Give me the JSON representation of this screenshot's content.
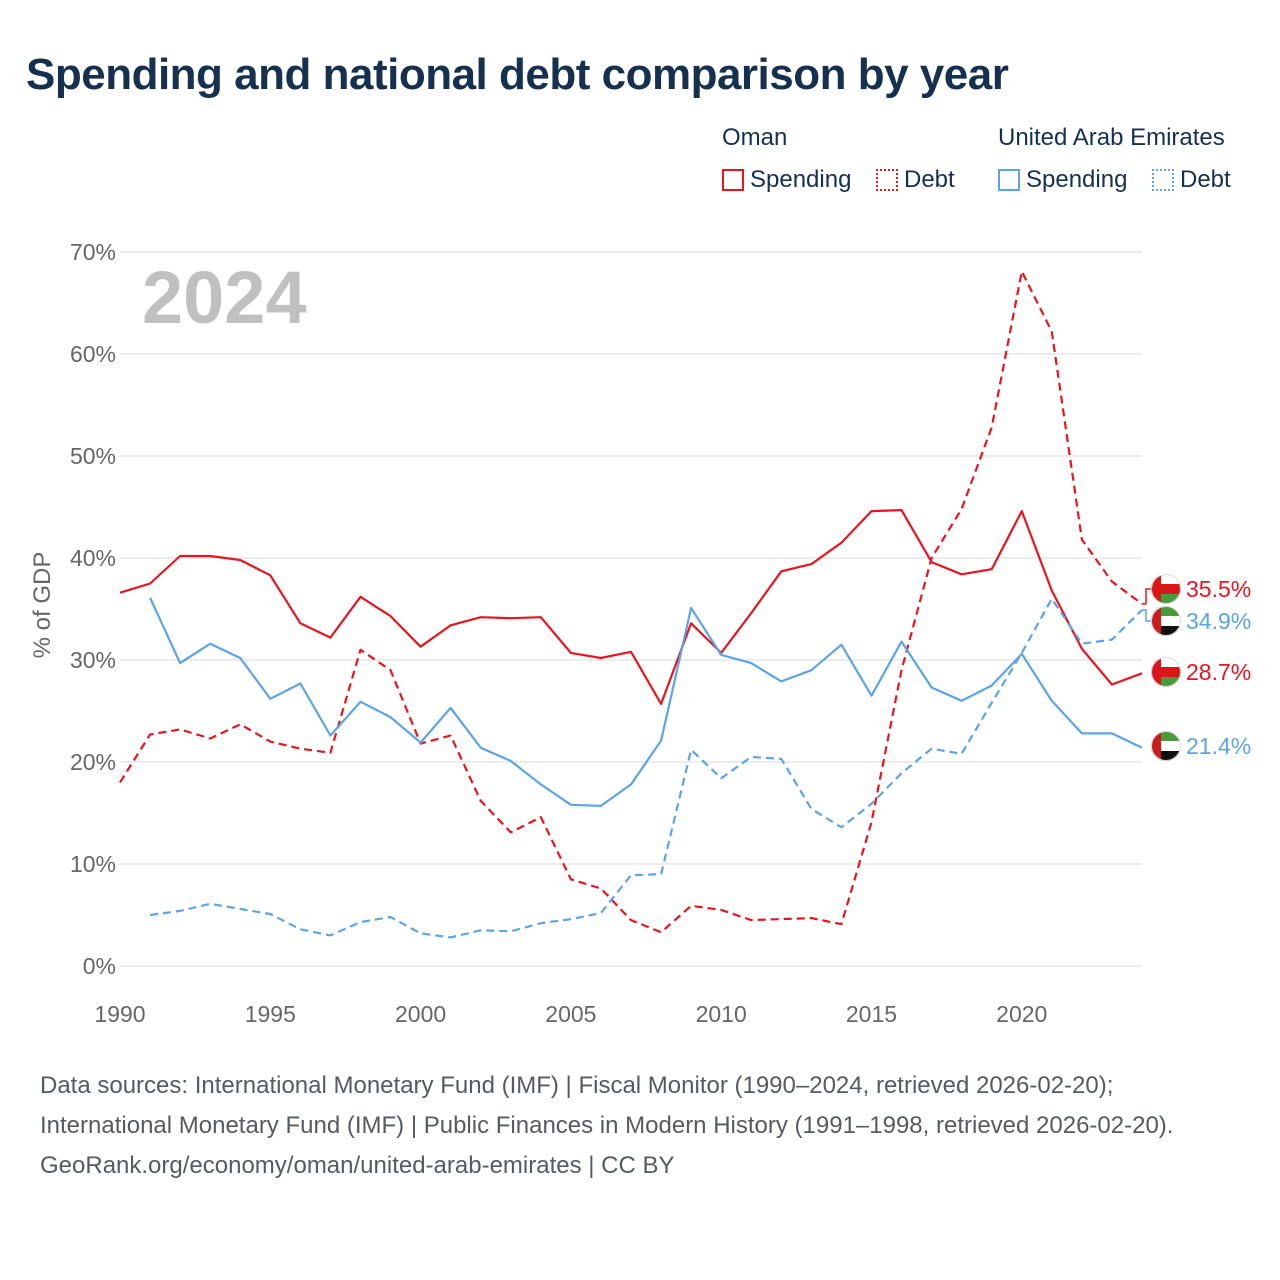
{
  "title": "Spending and national debt comparison by year",
  "legend": {
    "groups": [
      {
        "country": "Oman",
        "spending_label": "Spending",
        "debt_label": "Debt",
        "color": "#e8141e"
      },
      {
        "country": "United Arab Emirates",
        "spending_label": "Spending",
        "debt_label": "Debt",
        "color": "#5ba4e6"
      }
    ]
  },
  "year_overlay": "2024",
  "colors": {
    "oman": "#e8141e",
    "uae": "#5ba4e6",
    "grid": "#e6e6e6",
    "axis_text": "#666666",
    "overlay": "#c0c0c0"
  },
  "chart_data": {
    "type": "line",
    "ylabel": "% of GDP",
    "xlabel": "",
    "xlim": [
      1990,
      2024
    ],
    "ylim": [
      0,
      70
    ],
    "x_ticks": [
      1990,
      1995,
      2000,
      2005,
      2010,
      2015,
      2020
    ],
    "y_ticks": [
      0,
      10,
      20,
      30,
      40,
      50,
      60,
      70
    ],
    "y_tick_labels": [
      "0%",
      "10%",
      "20%",
      "30%",
      "40%",
      "50%",
      "60%",
      "70%"
    ],
    "grid": true,
    "series": [
      {
        "name": "Oman Spending",
        "country": "Oman",
        "style": "solid",
        "color": "#e8141e",
        "x": [
          1990,
          1991,
          1992,
          1993,
          1994,
          1995,
          1996,
          1997,
          1998,
          1999,
          2000,
          2001,
          2002,
          2003,
          2004,
          2005,
          2006,
          2007,
          2008,
          2009,
          2010,
          2011,
          2012,
          2013,
          2014,
          2015,
          2016,
          2017,
          2018,
          2019,
          2020,
          2021,
          2022,
          2023,
          2024
        ],
        "values": [
          36.6,
          37.5,
          40.2,
          40.2,
          39.8,
          38.3,
          33.6,
          32.2,
          36.2,
          34.3,
          31.3,
          33.4,
          34.2,
          34.1,
          34.2,
          30.7,
          30.2,
          30.8,
          25.7,
          33.6,
          30.7,
          34.6,
          38.7,
          39.4,
          41.5,
          44.6,
          44.7,
          39.6,
          38.4,
          38.9,
          44.6,
          36.8,
          31.1,
          27.6,
          28.7
        ],
        "end_label": "28.7%"
      },
      {
        "name": "Oman Debt",
        "country": "Oman",
        "style": "dashed",
        "color": "#e8141e",
        "x": [
          1990,
          1991,
          1992,
          1993,
          1994,
          1995,
          1996,
          1997,
          1998,
          1999,
          2000,
          2001,
          2002,
          2003,
          2004,
          2005,
          2006,
          2007,
          2008,
          2009,
          2010,
          2011,
          2012,
          2013,
          2014,
          2015,
          2016,
          2017,
          2018,
          2019,
          2020,
          2021,
          2022,
          2023,
          2024
        ],
        "values": [
          18.0,
          22.7,
          23.2,
          22.3,
          23.7,
          22.0,
          21.3,
          20.9,
          31.0,
          29.0,
          21.8,
          22.6,
          16.2,
          13.1,
          14.6,
          8.5,
          7.6,
          4.5,
          3.3,
          5.9,
          5.5,
          4.5,
          4.6,
          4.7,
          4.1,
          14.1,
          29.0,
          40.0,
          44.8,
          52.8,
          68.1,
          62.2,
          41.8,
          37.7,
          35.5
        ],
        "end_label": "35.5%"
      },
      {
        "name": "United Arab Emirates Spending",
        "country": "United Arab Emirates",
        "style": "solid",
        "color": "#5ba4e6",
        "x": [
          1991,
          1992,
          1993,
          1994,
          1995,
          1996,
          1997,
          1998,
          1999,
          2000,
          2001,
          2002,
          2003,
          2004,
          2005,
          2006,
          2007,
          2008,
          2009,
          2010,
          2011,
          2012,
          2013,
          2014,
          2015,
          2016,
          2017,
          2018,
          2019,
          2020,
          2021,
          2022,
          2023,
          2024
        ],
        "values": [
          36.1,
          29.7,
          31.6,
          30.2,
          26.2,
          27.7,
          22.6,
          25.9,
          24.4,
          21.9,
          25.3,
          21.4,
          20.1,
          17.8,
          15.8,
          15.7,
          17.8,
          22.1,
          35.1,
          30.5,
          29.7,
          27.9,
          29.0,
          31.5,
          26.5,
          31.8,
          27.3,
          26.0,
          27.5,
          30.6,
          26.0,
          22.8,
          22.8,
          21.4
        ],
        "end_label": "21.4%"
      },
      {
        "name": "United Arab Emirates Debt",
        "country": "United Arab Emirates",
        "style": "dashed",
        "color": "#5ba4e6",
        "x": [
          1991,
          1992,
          1993,
          1994,
          1995,
          1996,
          1997,
          1998,
          1999,
          2000,
          2001,
          2002,
          2003,
          2004,
          2005,
          2006,
          2007,
          2008,
          2009,
          2010,
          2011,
          2012,
          2013,
          2014,
          2015,
          2016,
          2017,
          2018,
          2019,
          2020,
          2021,
          2022,
          2023,
          2024
        ],
        "values": [
          5.0,
          5.4,
          6.1,
          5.6,
          5.1,
          3.6,
          3.0,
          4.3,
          4.8,
          3.2,
          2.8,
          3.5,
          3.4,
          4.2,
          4.6,
          5.2,
          8.9,
          9.0,
          21.2,
          18.4,
          20.5,
          20.3,
          15.4,
          13.6,
          15.9,
          18.9,
          21.3,
          20.8,
          25.8,
          30.7,
          36.0,
          31.6,
          32.0,
          34.9
        ],
        "end_label": "34.9%"
      }
    ]
  },
  "footer": {
    "sources": "Data sources: International Monetary Fund (IMF) | Fiscal Monitor (1990–2024, retrieved 2026-02-20); International Monetary Fund (IMF) | Public Finances in Modern History (1991–1998, retrieved 2026-02-20).",
    "credit": "GeoRank.org/economy/oman/united-arab-emirates | CC BY"
  }
}
